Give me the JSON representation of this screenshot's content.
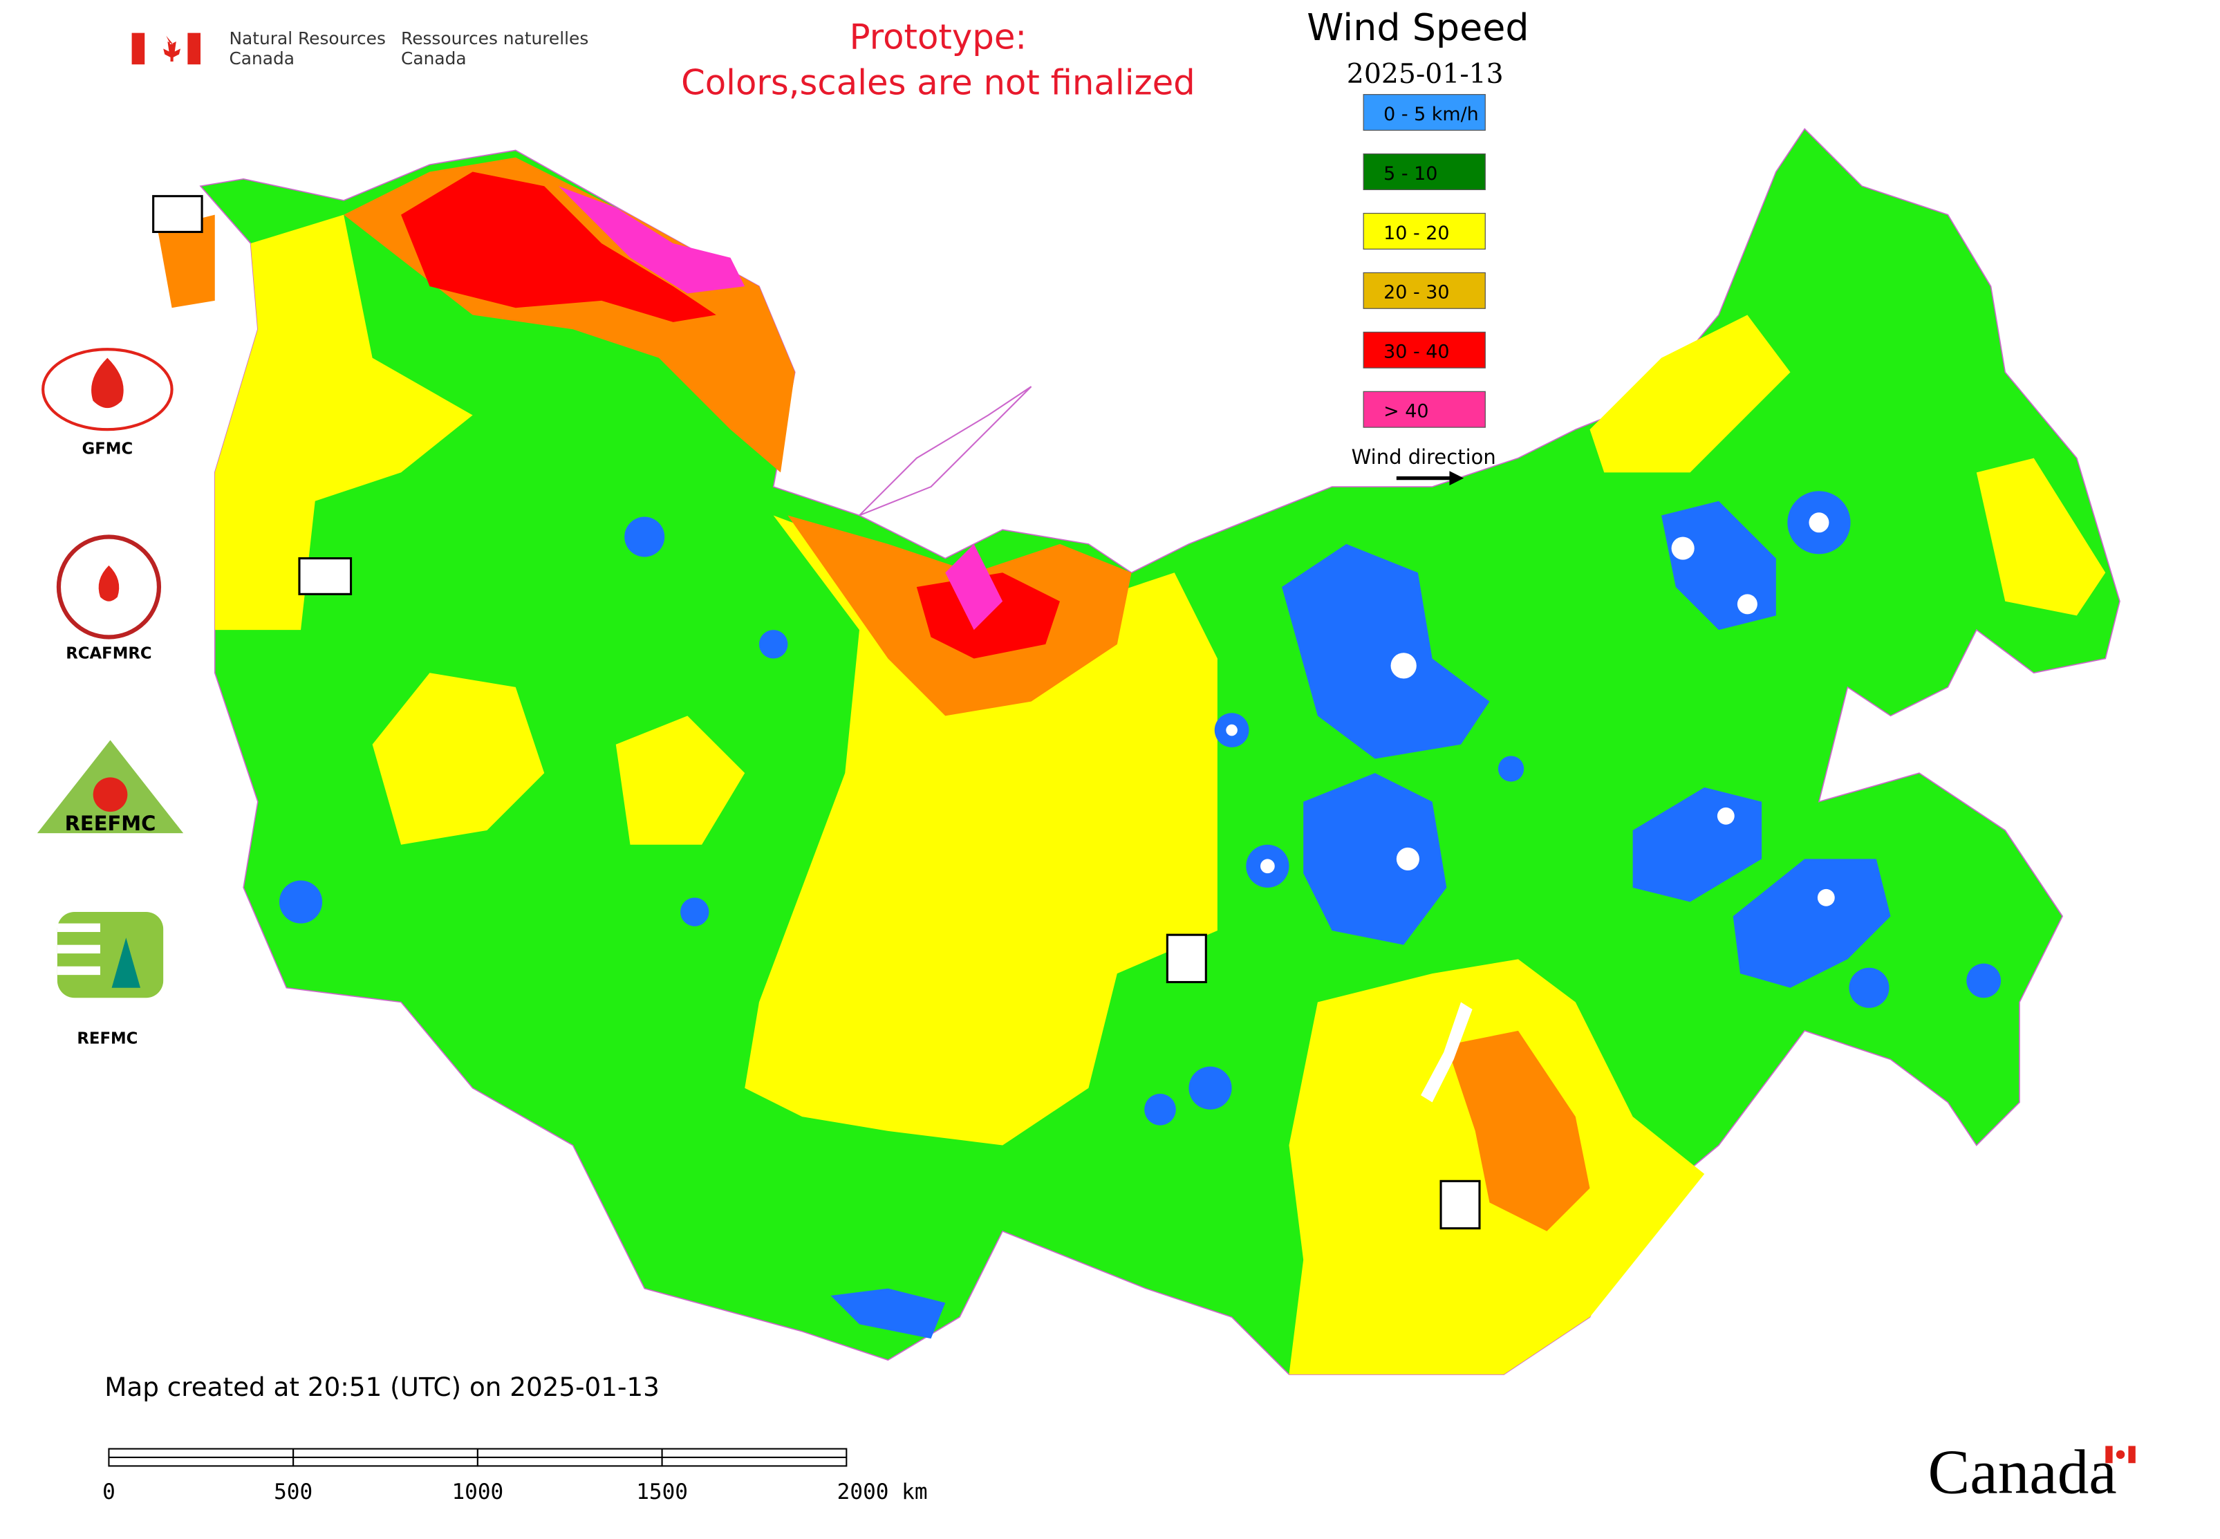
{
  "header": {
    "agency_en": [
      "Natural Resources",
      "Canada"
    ],
    "agency_fr": [
      "Ressources naturelles",
      "Canada"
    ],
    "note": [
      "Prototype:",
      "Colors,scales are not finalized"
    ]
  },
  "title": "Wind Speed",
  "date": "2025-01-13",
  "legend": {
    "items": [
      {
        "label": "0 - 5 km/h",
        "color": "#3399ff"
      },
      {
        "label": "5 - 10",
        "color": "#008000"
      },
      {
        "label": "10 - 20",
        "color": "#ffff00"
      },
      {
        "label": "20 - 30",
        "color": "#e6b800"
      },
      {
        "label": "30 - 40",
        "color": "#ff0000"
      },
      {
        "label": "> 40",
        "color": "#ff3399"
      }
    ],
    "wind_direction": "Wind direction"
  },
  "logos": [
    "GFMC",
    "RCAFMRC",
    "REEFMC",
    "REFMC"
  ],
  "footer": {
    "created": "Map created at 20:51 (UTC) on 2025-01-13",
    "scale_labels": [
      "0",
      "500",
      "1000",
      "1500",
      "2000 km"
    ],
    "wordmark": "Canada"
  }
}
